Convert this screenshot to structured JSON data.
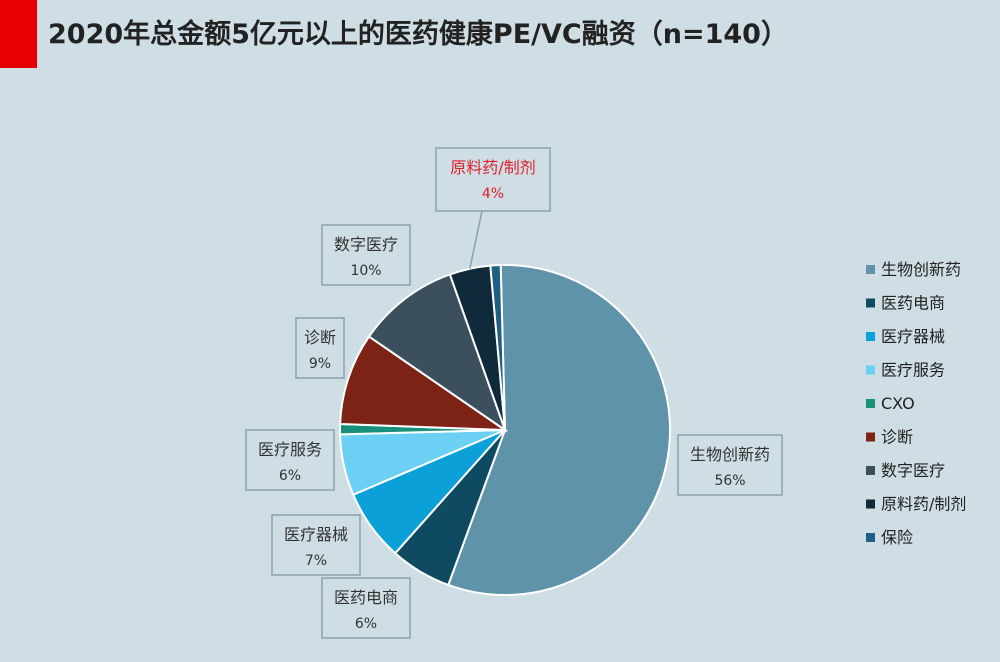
{
  "title": "2020年总金额5亿元以上的医药健康PE/VC融资（n=140）",
  "colors": {
    "accent": "#e60000",
    "background": "#cfdde4"
  },
  "chart_data": {
    "type": "pie",
    "title": "2020年总金额5亿元以上的医药健康PE/VC融资（n=140）",
    "slices": [
      {
        "name": "生物创新药",
        "value": 56,
        "label": "56%",
        "color": "#5f93aa"
      },
      {
        "name": "医药电商",
        "value": 6,
        "label": "6%",
        "color": "#0f4a63"
      },
      {
        "name": "医疗器械",
        "value": 7,
        "label": "7%",
        "color": "#0ba0d8"
      },
      {
        "name": "医疗服务",
        "value": 6,
        "label": "6%",
        "color": "#6bd0f3"
      },
      {
        "name": "CXO",
        "value": 1,
        "label": "",
        "color": "#19907c"
      },
      {
        "name": "诊断",
        "value": 9,
        "label": "9%",
        "color": "#7d2315"
      },
      {
        "name": "数字医疗",
        "value": 10,
        "label": "10%",
        "color": "#3b505c"
      },
      {
        "name": "原料药/制剂",
        "value": 4,
        "label": "4%",
        "color": "#0f2a3a"
      },
      {
        "name": "保险",
        "value": 1,
        "label": "",
        "color": "#1f5f86"
      }
    ],
    "highlight": {
      "name": "原料药/制剂",
      "color": "#e0202a"
    },
    "legend": {
      "placement": "right",
      "entries": [
        "生物创新药",
        "医药电商",
        "医疗器械",
        "医疗服务",
        "CXO",
        "诊断",
        "数字医疗",
        "原料药/制剂",
        "保险"
      ]
    }
  }
}
